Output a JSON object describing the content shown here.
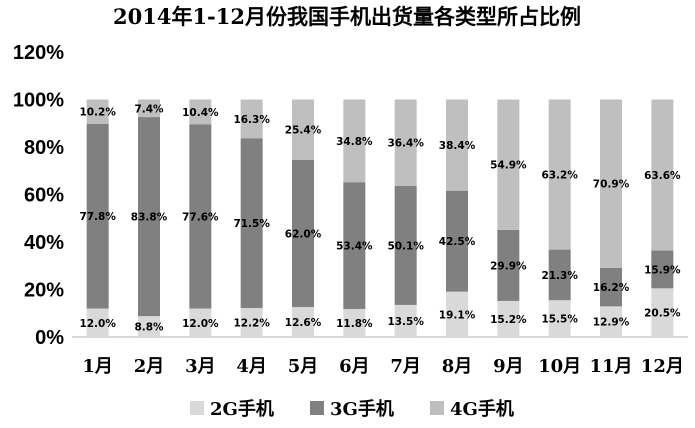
{
  "chart_data": {
    "type": "bar",
    "stacked": true,
    "title": "2014年1-12月份我国手机出货量各类型所占比例",
    "xlabel": "",
    "ylabel": "",
    "categories": [
      "1月",
      "2月",
      "3月",
      "4月",
      "5月",
      "6月",
      "7月",
      "8月",
      "9月",
      "10月",
      "11月",
      "12月"
    ],
    "series": [
      {
        "name": "2G手机",
        "color": "#d9d9d9",
        "values": [
          12.0,
          8.8,
          12.0,
          12.2,
          12.6,
          11.8,
          13.5,
          19.1,
          15.2,
          15.5,
          12.9,
          20.5
        ],
        "labels": [
          "12.0%",
          "8.8%",
          "12.0%",
          "12.2%",
          "12.6%",
          "11.8%",
          "13.5%",
          "19.1%",
          "15.2%",
          "15.5%",
          "12.9%",
          "20.5%"
        ]
      },
      {
        "name": "3G手机",
        "color": "#808080",
        "values": [
          77.8,
          83.8,
          77.6,
          71.5,
          62.0,
          53.4,
          50.1,
          42.5,
          29.9,
          21.3,
          16.2,
          15.9
        ],
        "labels": [
          "77.8%",
          "83.8%",
          "77.6%",
          "71.5%",
          "62.0%",
          "53.4%",
          "50.1%",
          "42.5%",
          "29.9%",
          "21.3%",
          "16.2%",
          "15.9%"
        ]
      },
      {
        "name": "4G手机",
        "color": "#bfbfbf",
        "values": [
          10.2,
          7.4,
          10.4,
          16.3,
          25.4,
          34.8,
          36.4,
          38.4,
          54.9,
          63.2,
          70.9,
          63.6
        ],
        "labels": [
          "10.2%",
          "7.4%",
          "10.4%",
          "16.3%",
          "25.4%",
          "34.8%",
          "36.4%",
          "38.4%",
          "54.9%",
          "63.2%",
          "70.9%",
          "63.6%"
        ]
      }
    ],
    "ylim": [
      0,
      120
    ],
    "yticks": [
      0,
      20,
      40,
      60,
      80,
      100,
      120
    ],
    "ytick_labels": [
      "0%",
      "20%",
      "40%",
      "60%",
      "80%",
      "100%",
      "120%"
    ],
    "grid": false,
    "legend_position": "bottom"
  }
}
